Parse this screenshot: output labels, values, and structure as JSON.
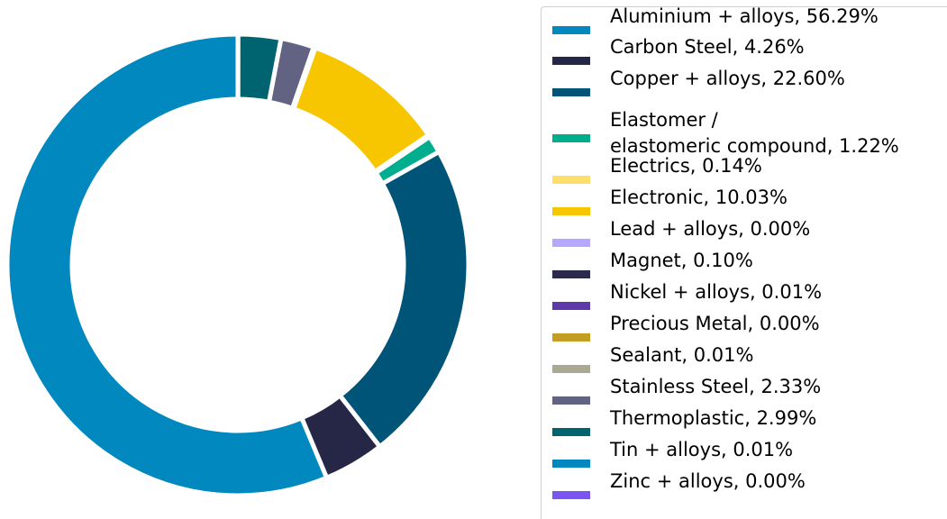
{
  "chart_data": {
    "type": "pie",
    "legend_position": "right",
    "series": [
      {
        "label": "Aluminium + alloys, 56.29%",
        "value": 56.29,
        "color": "#0088bf"
      },
      {
        "label": "Carbon Steel, 4.26%",
        "value": 4.26,
        "color": "#262647"
      },
      {
        "label": "Copper + alloys, 22.60%",
        "value": 22.6,
        "color": "#005478"
      },
      {
        "label": "Elastomer / elastomeric compound, 1.22%",
        "label_lines": [
          "Elastomer /",
          "elastomeric compound, 1.22%"
        ],
        "value": 1.22,
        "color": "#00ad8c"
      },
      {
        "label": "Electrics, 0.14%",
        "value": 0.14,
        "color": "#ffdf6b"
      },
      {
        "label": "Electronic, 10.03%",
        "value": 10.03,
        "color": "#f7c600"
      },
      {
        "label": "Lead + alloys, 0.00%",
        "value": 0.0,
        "color": "#b7a8ff"
      },
      {
        "label": "Magnet, 0.10%",
        "value": 0.1,
        "color": "#2b2a4c"
      },
      {
        "label": "Nickel + alloys, 0.01%",
        "value": 0.01,
        "color": "#5c3ba8"
      },
      {
        "label": "Precious Metal, 0.00%",
        "value": 0.0,
        "color": "#c49e22"
      },
      {
        "label": "Sealant, 0.01%",
        "value": 0.01,
        "color": "#a9a994"
      },
      {
        "label": "Stainless Steel, 2.33%",
        "value": 2.33,
        "color": "#626382"
      },
      {
        "label": "Thermoplastic, 2.99%",
        "value": 2.99,
        "color": "#006470"
      },
      {
        "label": "Tin + alloys, 0.01%",
        "value": 0.01,
        "color": "#0088bf"
      },
      {
        "label": "Zinc + alloys, 0.00%",
        "value": 0.0,
        "color": "#7b55f0"
      }
    ]
  }
}
